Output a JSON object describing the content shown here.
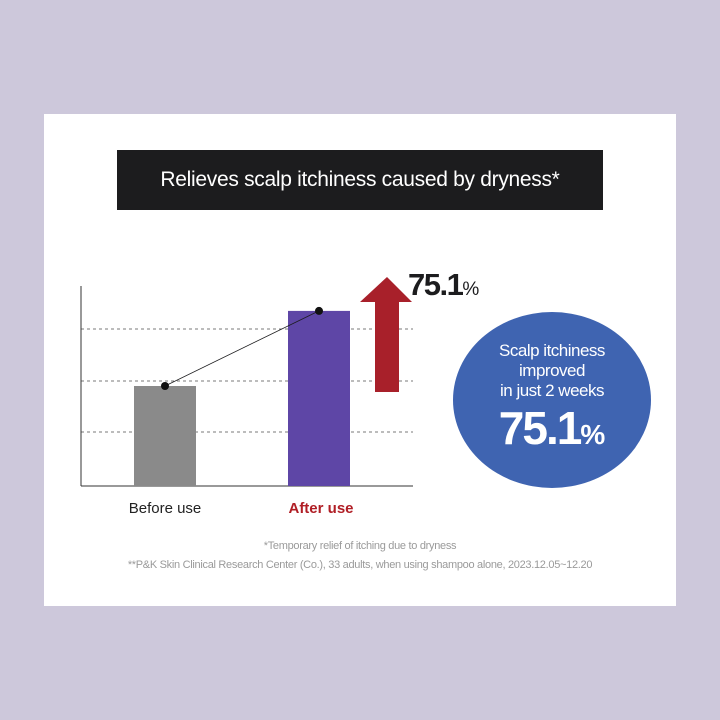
{
  "title": "Relieves scalp itchiness caused by dryness*",
  "chart_data": {
    "type": "bar",
    "categories": [
      "Before use",
      "After use"
    ],
    "values": [
      1,
      1.751
    ],
    "value_note": "After use is 75.1% higher than Before use; no y-axis values are printed",
    "highlight_label": "75.1",
    "highlight_unit": "%",
    "ylim": [
      0,
      2.0
    ],
    "grid": true,
    "gridline_count": 3,
    "colors": {
      "before": "#8a8a8a",
      "after": "#5e46a6",
      "arrow": "#a8202a",
      "category_after": "#b01e25"
    }
  },
  "callout": {
    "line1": "Scalp itchiness",
    "line2": "improved",
    "line3": "in just 2 weeks",
    "value": "75.1",
    "unit": "%",
    "color": "#3f64b1"
  },
  "footnotes": [
    "*Temporary relief of itching due to dryness",
    "**P&K Skin Clinical Research Center (Co.), 33 adults, when using shampoo alone, 2023.12.05~12.20"
  ]
}
